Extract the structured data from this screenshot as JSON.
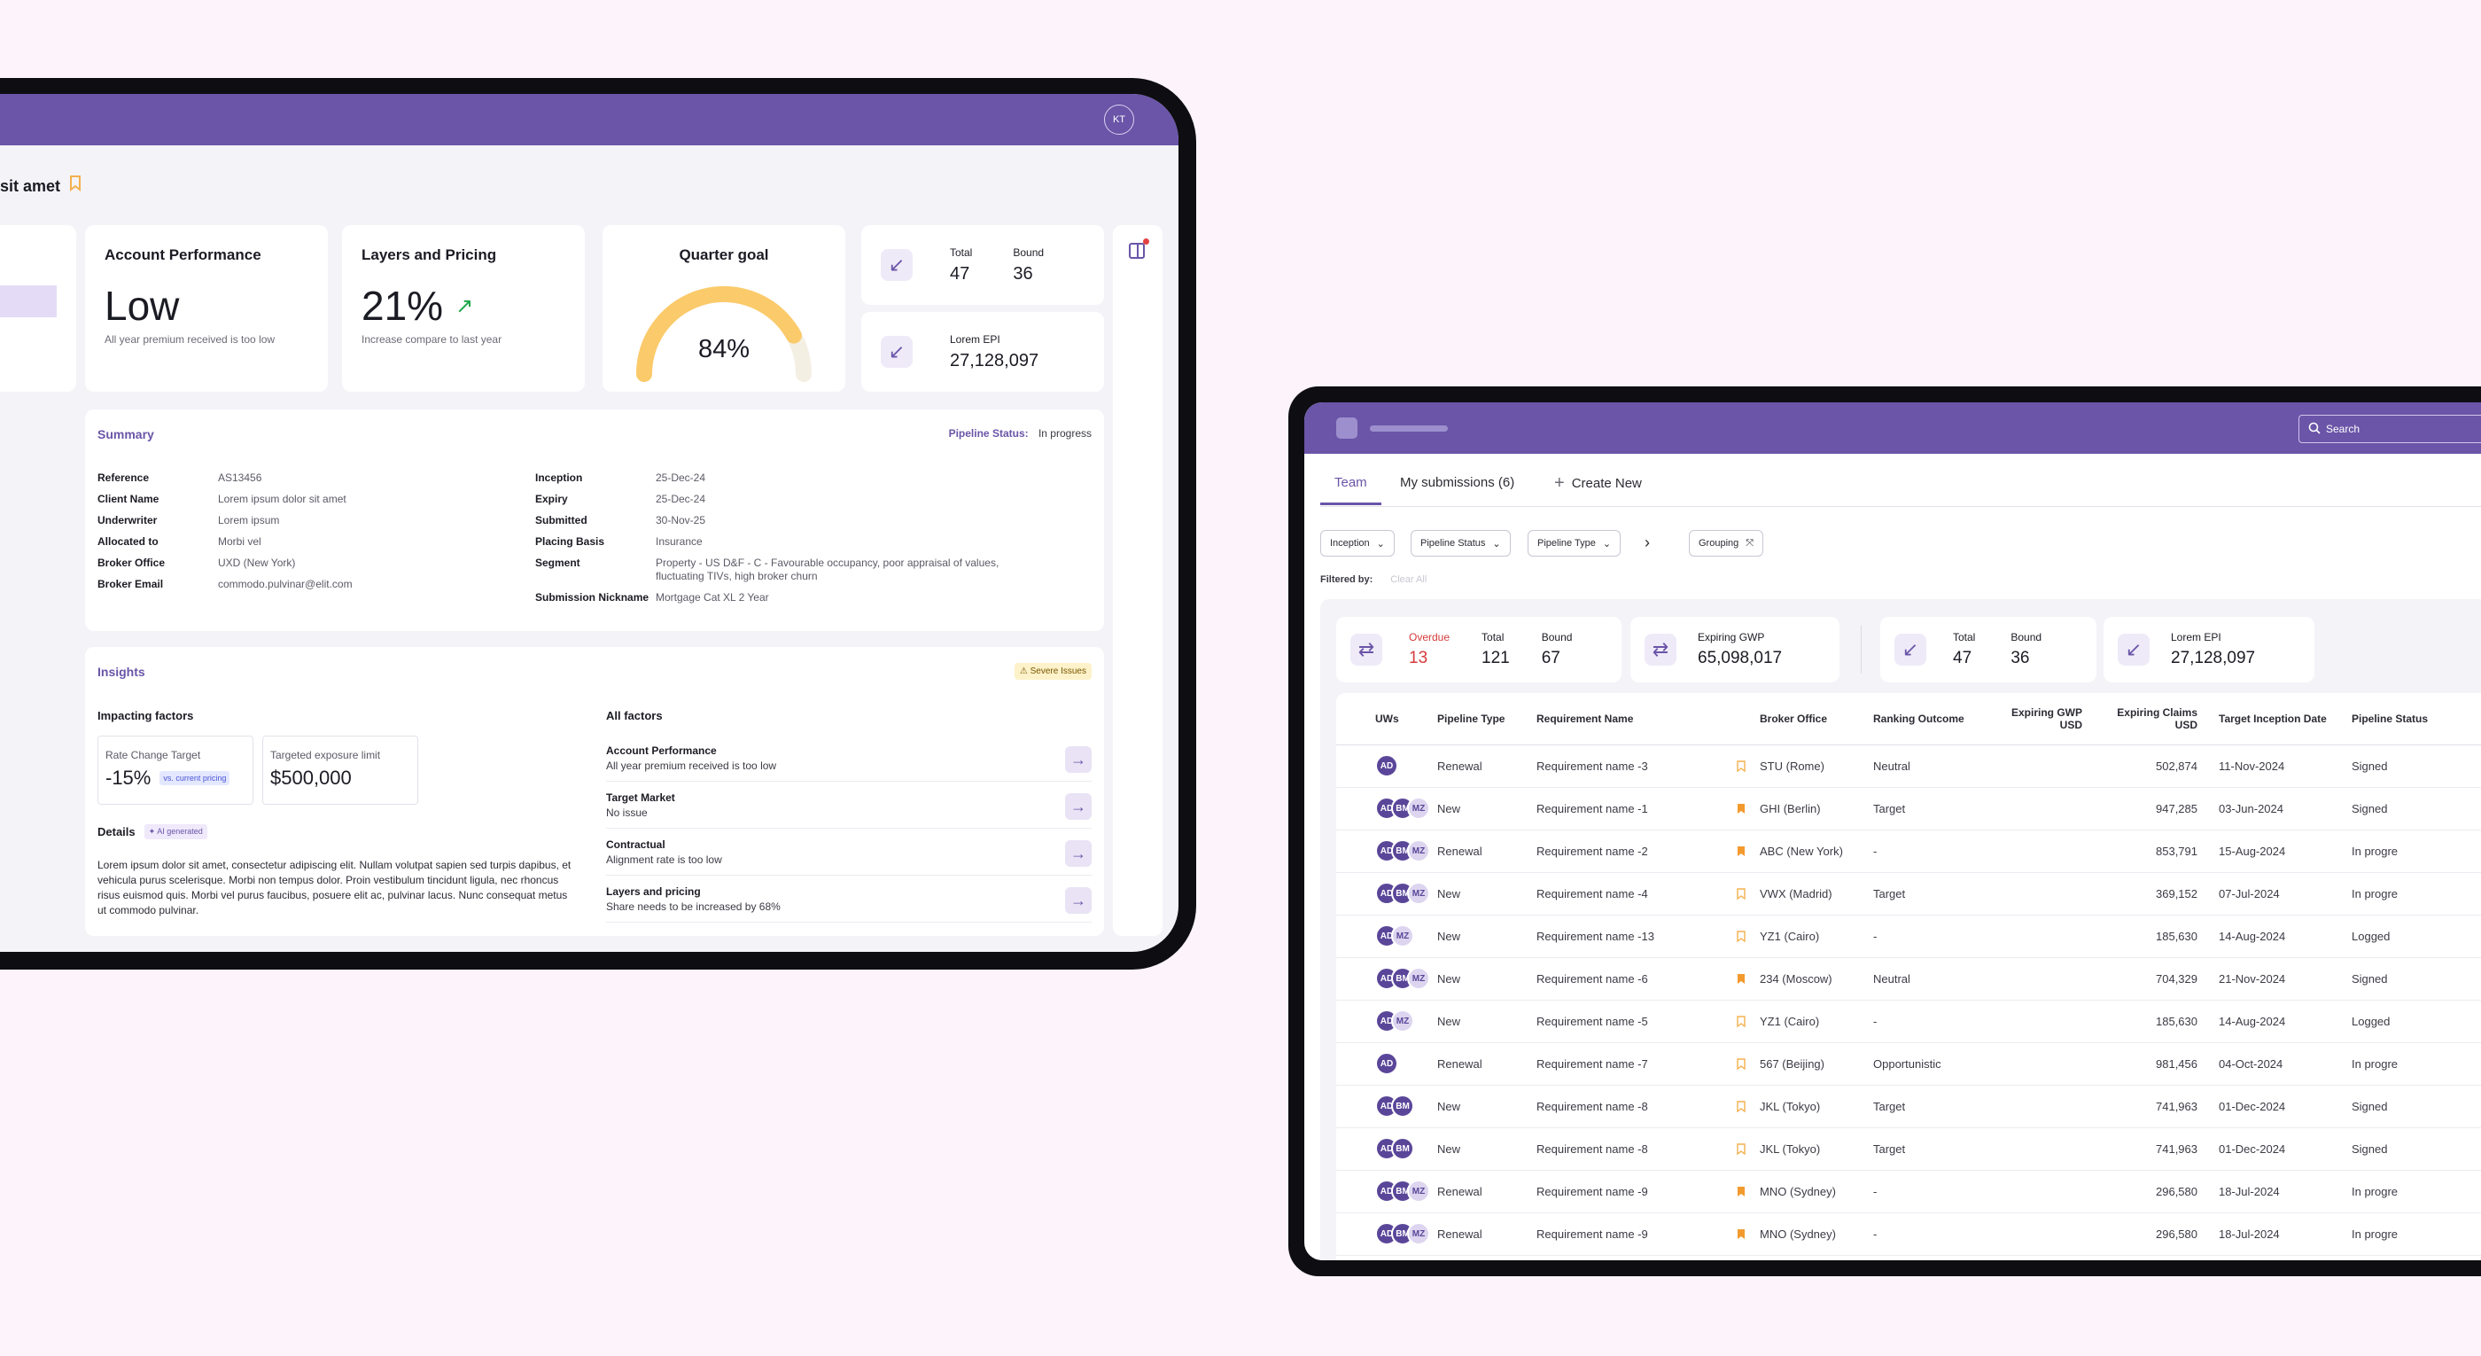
{
  "left": {
    "avatar": "KT",
    "page_title": "sit amet",
    "perf": {
      "title": "Account Performance",
      "value": "Low",
      "caption": "All year premium received is too low"
    },
    "layers": {
      "title": "Layers and Pricing",
      "value": "21%",
      "caption": "Increase compare to last year"
    },
    "goal": {
      "title": "Quarter goal",
      "value": "84%",
      "fraction": 0.84
    },
    "stat1": {
      "total_label": "Total",
      "total": "47",
      "bound_label": "Bound",
      "bound": "36"
    },
    "stat2": {
      "label": "Lorem EPI",
      "value": "27,128,097"
    },
    "summary": {
      "title": "Summary",
      "status_label": "Pipeline Status:",
      "status_value": "In progress",
      "left_rows": [
        {
          "label": "Reference",
          "value": "AS13456"
        },
        {
          "label": "Client Name",
          "value": "Lorem ipsum dolor sit amet"
        },
        {
          "label": "Underwriter",
          "value": "Lorem ipsum"
        },
        {
          "label": "Allocated to",
          "value": "Morbi vel"
        },
        {
          "label": "Broker Office",
          "value": "UXD (New York)"
        },
        {
          "label": "Broker Email",
          "value": "commodo.pulvinar@elit.com"
        }
      ],
      "right_rows": [
        {
          "label": "Inception",
          "value": "25-Dec-24"
        },
        {
          "label": "Expiry",
          "value": "25-Dec-24"
        },
        {
          "label": "Submitted",
          "value": "30-Nov-25"
        },
        {
          "label": "Placing Basis",
          "value": "Insurance"
        },
        {
          "label": "Segment",
          "value": "Property - US D&F - C - Favourable occupancy, poor appraisal of values, fluctuating TIVs, high broker churn"
        },
        {
          "label": "Submission Nickname",
          "value": "Mortgage Cat XL 2 Year"
        }
      ]
    },
    "insights": {
      "title": "Insights",
      "badge": "Severe Issues",
      "impacting_title": "Impacting factors",
      "rate_label": "Rate Change Target",
      "rate_value": "-15%",
      "rate_tag": "vs. current pricing",
      "exposure_label": "Targeted exposure limit",
      "exposure_value": "$500,000",
      "details_title": "Details",
      "ai_tag": "AI generated",
      "details_text": "Lorem ipsum dolor sit amet, consectetur adipiscing elit. Nullam volutpat sapien sed turpis dapibus, et vehicula purus scelerisque. Morbi non tempus dolor. Proin vestibulum tincidunt ligula, nec rhoncus risus euismod quis. Morbi vel purus faucibus, posuere elit ac, pulvinar lacus. Nunc consequat metus ut commodo pulvinar.",
      "all_title": "All factors",
      "factors": [
        {
          "title": "Account Performance",
          "desc": "All year premium received is too low"
        },
        {
          "title": "Target Market",
          "desc": "No issue"
        },
        {
          "title": "Contractual",
          "desc": "Alignment rate is too low"
        },
        {
          "title": "Layers and pricing",
          "desc": "Share needs to be increased by 68%"
        }
      ]
    }
  },
  "right": {
    "search_placeholder": "Search",
    "tabs": [
      "Team",
      "My submissions (6)",
      "Create New"
    ],
    "filters": [
      "Inception",
      "Pipeline Status",
      "Pipeline Type"
    ],
    "grouping": "Grouping",
    "filtered_by": "Filtered by:",
    "clear_all": "Clear All",
    "stats": {
      "overdue_label": "Overdue",
      "overdue": "13",
      "total_label": "Total",
      "total": "121",
      "bound_label": "Bound",
      "bound": "67",
      "gwp_label": "Expiring GWP",
      "gwp": "65,098,017",
      "total2_label": "Total",
      "total2": "47",
      "bound2_label": "Bound",
      "bound2": "36",
      "epi_label": "Lorem EPI",
      "epi": "27,128,097"
    },
    "columns": [
      "UWs",
      "Pipeline Type",
      "Requirement Name",
      "Broker Office",
      "Ranking Outcome",
      "Expiring GWP USD",
      "Expiring Claims USD",
      "Target Inception Date",
      "Pipeline Status"
    ],
    "rows": [
      {
        "uws": [
          "AD"
        ],
        "type": "Renewal",
        "name": "Requirement name -3",
        "flag": false,
        "office": "STU (Rome)",
        "rank": "Neutral",
        "gwp": "",
        "claims": "502,874",
        "date": "11-Nov-2024",
        "status": "Signed"
      },
      {
        "uws": [
          "AD",
          "BM",
          "MZ"
        ],
        "type": "New",
        "name": "Requirement name -1",
        "flag": true,
        "office": "GHI (Berlin)",
        "rank": "Target",
        "gwp": "",
        "claims": "947,285",
        "date": "03-Jun-2024",
        "status": "Signed"
      },
      {
        "uws": [
          "AD",
          "BM",
          "MZ"
        ],
        "type": "Renewal",
        "name": "Requirement name -2",
        "flag": true,
        "office": "ABC (New York)",
        "rank": "-",
        "gwp": "",
        "claims": "853,791",
        "date": "15-Aug-2024",
        "status": "In progre"
      },
      {
        "uws": [
          "AD",
          "BM",
          "MZ"
        ],
        "type": "New",
        "name": "Requirement name -4",
        "flag": false,
        "office": "VWX (Madrid)",
        "rank": "Target",
        "gwp": "",
        "claims": "369,152",
        "date": "07-Jul-2024",
        "status": "In progre"
      },
      {
        "uws": [
          "AD",
          "MZ"
        ],
        "type": "New",
        "name": "Requirement name -13",
        "flag": false,
        "office": "YZ1 (Cairo)",
        "rank": "-",
        "gwp": "",
        "claims": "185,630",
        "date": "14-Aug-2024",
        "status": "Logged"
      },
      {
        "uws": [
          "AD",
          "BM",
          "MZ"
        ],
        "type": "New",
        "name": "Requirement name -6",
        "flag": true,
        "office": "234 (Moscow)",
        "rank": "Neutral",
        "gwp": "",
        "claims": "704,329",
        "date": "21-Nov-2024",
        "status": "Signed"
      },
      {
        "uws": [
          "AD",
          "MZ"
        ],
        "type": "New",
        "name": "Requirement name -5",
        "flag": false,
        "office": "YZ1 (Cairo)",
        "rank": "-",
        "gwp": "",
        "claims": "185,630",
        "date": "14-Aug-2024",
        "status": "Logged"
      },
      {
        "uws": [
          "AD"
        ],
        "type": "Renewal",
        "name": "Requirement name -7",
        "flag": false,
        "office": "567 (Beijing)",
        "rank": "Opportunistic",
        "gwp": "",
        "claims": "981,456",
        "date": "04-Oct-2024",
        "status": "In progre"
      },
      {
        "uws": [
          "AD",
          "BM"
        ],
        "type": "New",
        "name": "Requirement name -8",
        "flag": false,
        "office": "JKL (Tokyo)",
        "rank": "Target",
        "gwp": "",
        "claims": "741,963",
        "date": "01-Dec-2024",
        "status": "Signed"
      },
      {
        "uws": [
          "AD",
          "BM"
        ],
        "type": "New",
        "name": "Requirement name -8",
        "flag": false,
        "office": "JKL (Tokyo)",
        "rank": "Target",
        "gwp": "",
        "claims": "741,963",
        "date": "01-Dec-2024",
        "status": "Signed"
      },
      {
        "uws": [
          "AD",
          "BM",
          "MZ"
        ],
        "type": "Renewal",
        "name": "Requirement name -9",
        "flag": true,
        "office": "MNO (Sydney)",
        "rank": "-",
        "gwp": "",
        "claims": "296,580",
        "date": "18-Jul-2024",
        "status": "In progre"
      },
      {
        "uws": [
          "AD",
          "BM",
          "MZ"
        ],
        "type": "Renewal",
        "name": "Requirement name -9",
        "flag": true,
        "office": "MNO (Sydney)",
        "rank": "-",
        "gwp": "",
        "claims": "296,580",
        "date": "18-Jul-2024",
        "status": "In progre"
      }
    ]
  }
}
